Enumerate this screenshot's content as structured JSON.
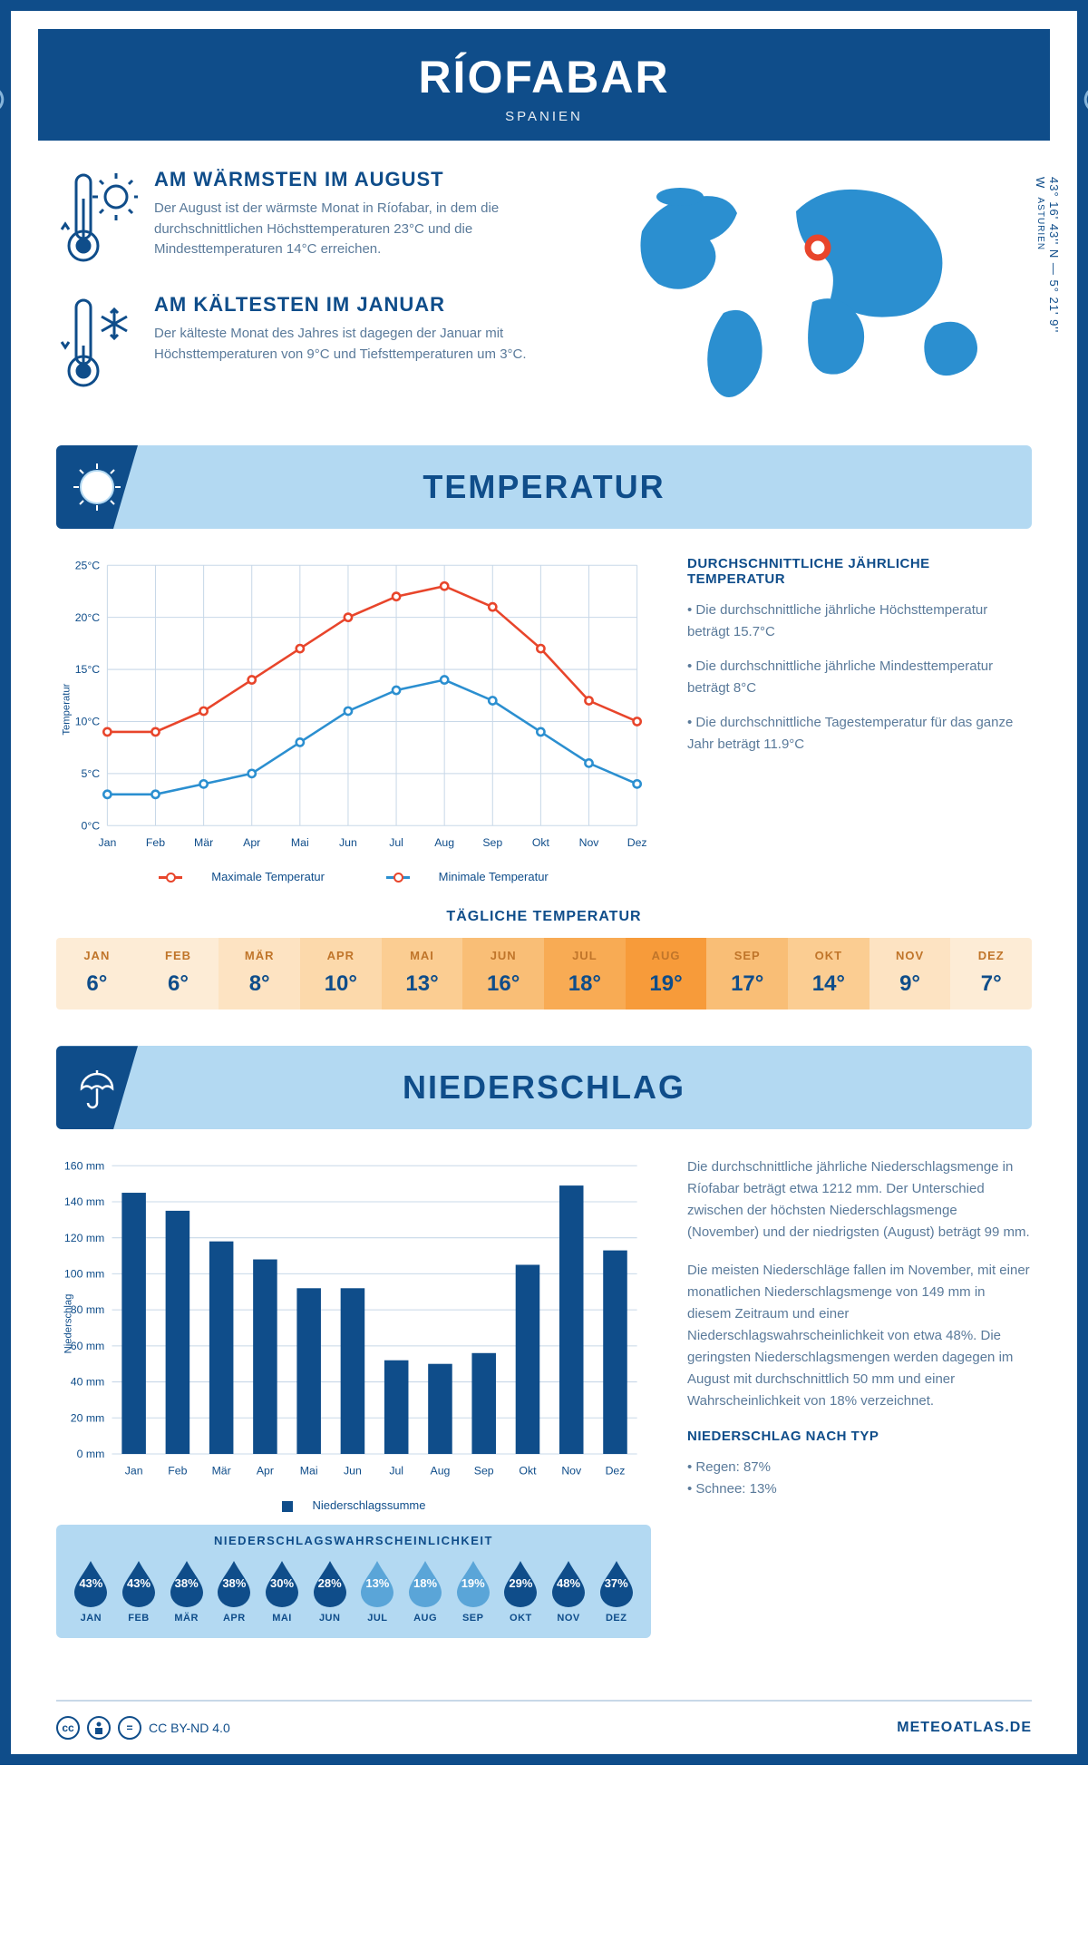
{
  "header": {
    "title": "RÍOFABAR",
    "country": "SPANIEN"
  },
  "coords": "43° 16' 43'' N — 5° 21' 9'' W",
  "region": "ASTURIEN",
  "facts": {
    "warm": {
      "title": "AM WÄRMSTEN IM AUGUST",
      "text": "Der August ist der wärmste Monat in Ríofabar, in dem die durchschnittlichen Höchsttemperaturen 23°C und die Mindesttemperaturen 14°C erreichen."
    },
    "cold": {
      "title": "AM KÄLTESTEN IM JANUAR",
      "text": "Der kälteste Monat des Jahres ist dagegen der Januar mit Höchsttemperaturen von 9°C und Tiefsttemperaturen um 3°C."
    }
  },
  "map": {
    "highlight_color": "#e8452b",
    "land_color": "#2b8fd0"
  },
  "sections": {
    "temp": "TEMPERATUR",
    "precip": "NIEDERSCHLAG"
  },
  "months": [
    "Jan",
    "Feb",
    "Mär",
    "Apr",
    "Mai",
    "Jun",
    "Jul",
    "Aug",
    "Sep",
    "Okt",
    "Nov",
    "Dez"
  ],
  "months_uc": [
    "JAN",
    "FEB",
    "MÄR",
    "APR",
    "MAI",
    "JUN",
    "JUL",
    "AUG",
    "SEP",
    "OKT",
    "NOV",
    "DEZ"
  ],
  "temp_chart": {
    "type": "line",
    "ylabel": "Temperatur",
    "ylim": [
      0,
      25
    ],
    "ytick_step": 5,
    "grid_color": "#c8d8e8",
    "series": {
      "max": {
        "label": "Maximale Temperatur",
        "color": "#e8452b",
        "values": [
          9,
          9,
          11,
          14,
          17,
          20,
          22,
          23,
          21,
          17,
          12,
          10
        ]
      },
      "min": {
        "label": "Minimale Temperatur",
        "color": "#2b8fd0",
        "values": [
          3,
          3,
          4,
          5,
          8,
          11,
          13,
          14,
          12,
          9,
          6,
          4
        ]
      }
    }
  },
  "temp_annual": {
    "heading": "DURCHSCHNITTLICHE JÄHRLICHE TEMPERATUR",
    "items": [
      "Die durchschnittliche jährliche Höchsttemperatur beträgt 15.7°C",
      "Die durchschnittliche jährliche Mindesttemperatur beträgt 8°C",
      "Die durchschnittliche Tagestemperatur für das ganze Jahr beträgt 11.9°C"
    ]
  },
  "daily_temp": {
    "title": "TÄGLICHE TEMPERATUR",
    "values": [
      6,
      6,
      8,
      10,
      13,
      16,
      18,
      19,
      17,
      14,
      9,
      7
    ],
    "cell_colors": [
      "#fdecd6",
      "#fdecd6",
      "#fde3c2",
      "#fcd9ab",
      "#fbcd92",
      "#f9be76",
      "#f8ab54",
      "#f79b3a",
      "#f9be76",
      "#fbcd92",
      "#fde3c2",
      "#fdecd6"
    ]
  },
  "precip_chart": {
    "type": "bar",
    "ylabel": "Niederschlag",
    "ylim": [
      0,
      160
    ],
    "ytick_step": 20,
    "bar_color": "#0f4d8a",
    "grid_color": "#c8d8e8",
    "legend": "Niederschlagssumme",
    "values": [
      145,
      135,
      118,
      108,
      92,
      92,
      52,
      50,
      56,
      105,
      149,
      113
    ]
  },
  "precip_text": {
    "p1": "Die durchschnittliche jährliche Niederschlagsmenge in Ríofabar beträgt etwa 1212 mm. Der Unterschied zwischen der höchsten Niederschlagsmenge (November) und der niedrigsten (August) beträgt 99 mm.",
    "p2": "Die meisten Niederschläge fallen im November, mit einer monatlichen Niederschlagsmenge von 149 mm in diesem Zeitraum und einer Niederschlagswahrscheinlichkeit von etwa 48%. Die geringsten Niederschlagsmengen werden dagegen im August mit durchschnittlich 50 mm und einer Wahrscheinlichkeit von 18% verzeichnet.",
    "by_type_heading": "NIEDERSCHLAG NACH TYP",
    "by_type": [
      "Regen: 87%",
      "Schnee: 13%"
    ]
  },
  "precip_prob": {
    "title": "NIEDERSCHLAGSWAHRSCHEINLICHKEIT",
    "values": [
      43,
      43,
      38,
      38,
      30,
      28,
      13,
      18,
      19,
      29,
      48,
      37
    ],
    "dark": "#0f4d8a",
    "light": "#5aa5d8"
  },
  "footer": {
    "license": "CC BY-ND 4.0",
    "site": "METEOATLAS.DE"
  }
}
